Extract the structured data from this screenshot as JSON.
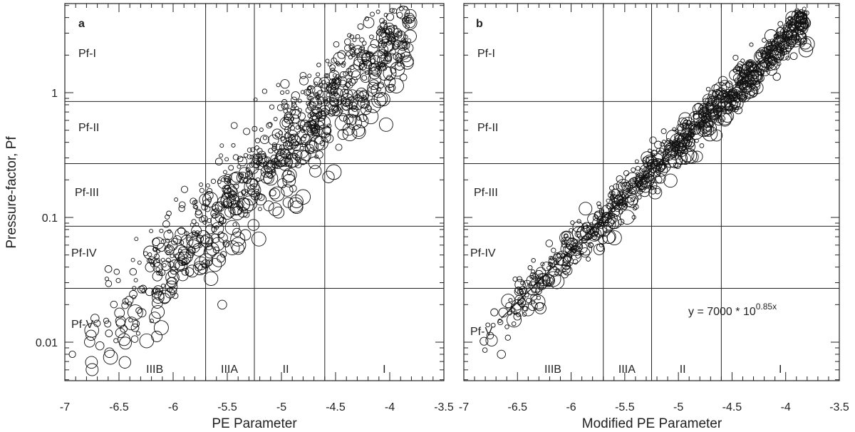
{
  "chart_data": [
    {
      "panel": "a",
      "type": "scatter",
      "title": "",
      "xlabel": "PE Parameter",
      "ylabel": "Pressure-factor, Pf",
      "xlim": [
        -7,
        -3.5
      ],
      "ylim": [
        0.005,
        4
      ],
      "yscale": "log",
      "x_ticks": [
        "-7",
        "-6.5",
        "-6",
        "-5.5",
        "-5",
        "-4.5",
        "-4",
        "-3.5"
      ],
      "y_ticks": [
        "0.01",
        "0.1",
        "1"
      ],
      "vertical_boundaries": [
        -5.7,
        -5.25,
        -4.6
      ],
      "horizontal_boundaries": [
        0.027,
        0.085,
        0.27,
        0.85
      ],
      "x_regions": [
        "IIIB",
        "IIIA",
        "II",
        "I"
      ],
      "y_regions": [
        "Pf-I",
        "Pf-II",
        "Pf-III",
        "Pf-IV",
        "Pf-V"
      ],
      "grid": false,
      "legend": "none",
      "n_points_estimated": 900,
      "trend_estimate": "log10(Pf) ≈ 3.845 + 0.85·x, with larger circles plotted below the trend"
    },
    {
      "panel": "b",
      "type": "scatter",
      "title": "",
      "xlabel": "Modified PE Parameter",
      "ylabel": "",
      "xlim": [
        -7,
        -3.5
      ],
      "ylim": [
        0.005,
        4
      ],
      "yscale": "log",
      "x_ticks": [
        "-7",
        "-6.5",
        "-6",
        "-5.5",
        "-5",
        "-4.5",
        "-4",
        "-3.5"
      ],
      "y_ticks": [],
      "vertical_boundaries": [
        -5.7,
        -5.25,
        -4.6
      ],
      "horizontal_boundaries": [
        0.027,
        0.085,
        0.27,
        0.85
      ],
      "x_regions": [
        "IIIB",
        "IIIA",
        "II",
        "I"
      ],
      "y_regions": [
        "Pf-I",
        "Pf-II",
        "Pf-III",
        "Pf-IV",
        "Pf-V"
      ],
      "fit_line": {
        "equation_base": "y = 7000 * 10",
        "equation_exponent": "0.85x",
        "a": 7000,
        "b": 0.85,
        "x_range": [
          -6.65,
          -3.85
        ]
      },
      "grid": false,
      "legend": "none",
      "n_points_estimated": 900
    }
  ]
}
